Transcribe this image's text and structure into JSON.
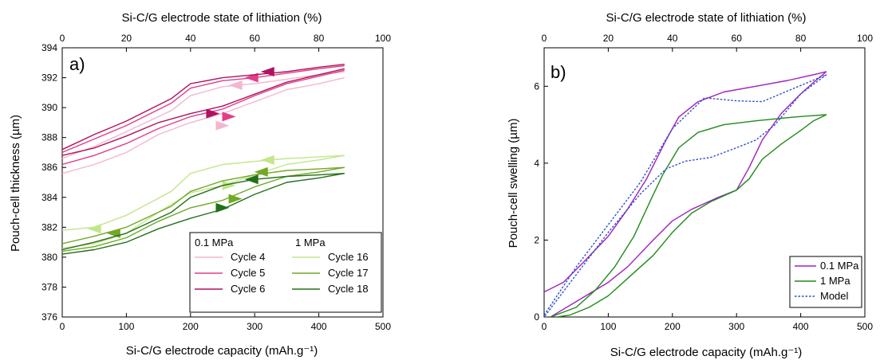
{
  "chart_data": [
    {
      "type": "line",
      "panel_label": "a)",
      "xlabel": "Si-C/G electrode capacity (mAh.g⁻¹)",
      "ylabel": "Pouch-cell thickness (µm)",
      "x2label": "Si-C/G electrode state of lithiation (%)",
      "xlim": [
        0,
        500
      ],
      "ylim": [
        376,
        394
      ],
      "x2lim": [
        0,
        100
      ],
      "xticks": [
        0,
        100,
        200,
        300,
        400,
        500
      ],
      "yticks": [
        376,
        378,
        380,
        382,
        384,
        386,
        388,
        390,
        392,
        394
      ],
      "x2ticks": [
        0,
        20,
        40,
        60,
        80,
        100
      ],
      "grid": false,
      "legend": {
        "placement": "bottom-right",
        "headers": [
          "0.1 MPa",
          "1 MPa"
        ]
      },
      "series": [
        {
          "name": "Cycle 4",
          "color": "#f4b6cf",
          "charge": [
            [
              0,
              385.6
            ],
            [
              50,
              386.2
            ],
            [
              100,
              387.0
            ],
            [
              150,
              388.2
            ],
            [
              200,
              389.0
            ],
            [
              250,
              389.6
            ],
            [
              300,
              390.4
            ],
            [
              350,
              391.2
            ],
            [
              400,
              391.6
            ],
            [
              440,
              392.0
            ]
          ],
          "discharge": [
            [
              440,
              392.4
            ],
            [
              400,
              392.2
            ],
            [
              350,
              391.9
            ],
            [
              300,
              391.6
            ],
            [
              250,
              391.4
            ],
            [
              200,
              390.8
            ],
            [
              170,
              389.8
            ],
            [
              100,
              388.4
            ],
            [
              50,
              387.4
            ],
            [
              0,
              386.6
            ]
          ],
          "arrows": [
            {
              "x": 250,
              "y": 388.8,
              "dir": "right"
            },
            {
              "x": 270,
              "y": 391.5,
              "dir": "left"
            }
          ]
        },
        {
          "name": "Cycle 5",
          "color": "#e33d89",
          "charge": [
            [
              0,
              386.2
            ],
            [
              50,
              386.8
            ],
            [
              100,
              387.6
            ],
            [
              150,
              388.6
            ],
            [
              200,
              389.4
            ],
            [
              250,
              389.9
            ],
            [
              300,
              390.8
            ],
            [
              350,
              391.6
            ],
            [
              400,
              392.1
            ],
            [
              440,
              392.5
            ]
          ],
          "discharge": [
            [
              440,
              392.8
            ],
            [
              400,
              392.6
            ],
            [
              350,
              392.3
            ],
            [
              300,
              392.0
            ],
            [
              250,
              391.8
            ],
            [
              200,
              391.3
            ],
            [
              170,
              390.3
            ],
            [
              100,
              388.8
            ],
            [
              50,
              387.9
            ],
            [
              0,
              387.0
            ]
          ],
          "arrows": [
            {
              "x": 260,
              "y": 389.4,
              "dir": "right"
            },
            {
              "x": 295,
              "y": 392.0,
              "dir": "left"
            }
          ]
        },
        {
          "name": "Cycle 6",
          "color": "#b0125f",
          "charge": [
            [
              0,
              386.8
            ],
            [
              50,
              387.3
            ],
            [
              100,
              388.1
            ],
            [
              150,
              389.0
            ],
            [
              200,
              389.6
            ],
            [
              250,
              390.1
            ],
            [
              300,
              390.9
            ],
            [
              350,
              391.7
            ],
            [
              400,
              392.2
            ],
            [
              440,
              392.6
            ]
          ],
          "discharge": [
            [
              440,
              392.9
            ],
            [
              400,
              392.7
            ],
            [
              350,
              392.4
            ],
            [
              300,
              392.2
            ],
            [
              250,
              392.0
            ],
            [
              200,
              391.6
            ],
            [
              170,
              390.6
            ],
            [
              100,
              389.1
            ],
            [
              50,
              388.2
            ],
            [
              0,
              387.2
            ]
          ],
          "arrows": [
            {
              "x": 235,
              "y": 389.6,
              "dir": "right"
            },
            {
              "x": 320,
              "y": 392.4,
              "dir": "left"
            }
          ]
        },
        {
          "name": "Cycle 16",
          "color": "#c2e68a",
          "charge": [
            [
              0,
              380.6
            ],
            [
              50,
              380.9
            ],
            [
              100,
              381.6
            ],
            [
              150,
              383.0
            ],
            [
              200,
              384.3
            ],
            [
              250,
              384.8
            ],
            [
              300,
              385.5
            ],
            [
              350,
              386.2
            ],
            [
              400,
              386.5
            ],
            [
              440,
              386.8
            ]
          ],
          "discharge": [
            [
              440,
              386.8
            ],
            [
              400,
              386.7
            ],
            [
              350,
              386.6
            ],
            [
              300,
              386.4
            ],
            [
              250,
              386.2
            ],
            [
              200,
              385.6
            ],
            [
              170,
              384.4
            ],
            [
              100,
              382.8
            ],
            [
              50,
              382.0
            ],
            [
              0,
              381.8
            ]
          ],
          "arrows": [
            {
              "x": 50,
              "y": 381.9,
              "dir": "left"
            },
            {
              "x": 260,
              "y": 384.8,
              "dir": "right"
            },
            {
              "x": 320,
              "y": 386.5,
              "dir": "left"
            }
          ]
        },
        {
          "name": "Cycle 17",
          "color": "#72a824",
          "charge": [
            [
              0,
              380.4
            ],
            [
              50,
              380.7
            ],
            [
              100,
              381.3
            ],
            [
              150,
              382.4
            ],
            [
              200,
              383.3
            ],
            [
              250,
              383.8
            ],
            [
              300,
              384.7
            ],
            [
              350,
              385.4
            ],
            [
              400,
              385.7
            ],
            [
              440,
              386.0
            ]
          ],
          "discharge": [
            [
              440,
              386.0
            ],
            [
              400,
              385.9
            ],
            [
              350,
              385.8
            ],
            [
              300,
              385.5
            ],
            [
              250,
              385.1
            ],
            [
              200,
              384.4
            ],
            [
              170,
              383.4
            ],
            [
              100,
              382.0
            ],
            [
              50,
              381.4
            ],
            [
              0,
              380.9
            ]
          ],
          "arrows": [
            {
              "x": 80,
              "y": 381.6,
              "dir": "left"
            },
            {
              "x": 270,
              "y": 383.9,
              "dir": "right"
            },
            {
              "x": 310,
              "y": 385.7,
              "dir": "left"
            }
          ]
        },
        {
          "name": "Cycle 18",
          "color": "#23701a",
          "charge": [
            [
              0,
              380.2
            ],
            [
              50,
              380.5
            ],
            [
              100,
              381.0
            ],
            [
              150,
              381.9
            ],
            [
              200,
              382.6
            ],
            [
              250,
              383.2
            ],
            [
              300,
              384.2
            ],
            [
              350,
              385.0
            ],
            [
              400,
              385.3
            ],
            [
              440,
              385.6
            ]
          ],
          "discharge": [
            [
              440,
              385.6
            ],
            [
              400,
              385.5
            ],
            [
              350,
              385.4
            ],
            [
              300,
              385.2
            ],
            [
              250,
              384.8
            ],
            [
              200,
              384.0
            ],
            [
              170,
              383.0
            ],
            [
              100,
              381.6
            ],
            [
              50,
              381.0
            ],
            [
              0,
              380.5
            ]
          ],
          "arrows": [
            {
              "x": 250,
              "y": 383.3,
              "dir": "right"
            },
            {
              "x": 295,
              "y": 385.2,
              "dir": "left"
            }
          ]
        }
      ]
    },
    {
      "type": "line",
      "panel_label": "b)",
      "xlabel": "Si-C/G electrode capacity (mAh.g⁻¹)",
      "ylabel": "Pouch-cell swelling (µm)",
      "x2label": "Si-C/G electrode state of lithiation (%)",
      "xlim": [
        0,
        500
      ],
      "ylim": [
        0,
        7
      ],
      "x2lim": [
        0,
        100
      ],
      "xticks": [
        0,
        100,
        200,
        300,
        400,
        500
      ],
      "yticks": [
        0,
        2,
        4,
        6
      ],
      "x2ticks": [
        0,
        20,
        40,
        60,
        80,
        100
      ],
      "grid": false,
      "legend": {
        "placement": "bottom-right"
      },
      "series": [
        {
          "name": "0.1 MPa",
          "color": "#a020c0",
          "dash": false,
          "segments": [
            [
              [
                0,
                0.65
              ],
              [
                30,
                0.9
              ],
              [
                60,
                1.4
              ],
              [
                100,
                2.1
              ],
              [
                130,
                2.8
              ],
              [
                160,
                3.6
              ],
              [
                190,
                4.6
              ],
              [
                210,
                5.2
              ],
              [
                240,
                5.6
              ],
              [
                280,
                5.85
              ],
              [
                330,
                6.0
              ],
              [
                380,
                6.15
              ],
              [
                420,
                6.3
              ],
              [
                440,
                6.38
              ]
            ],
            [
              [
                440,
                6.38
              ],
              [
                420,
                6.1
              ],
              [
                400,
                5.8
              ],
              [
                370,
                5.3
              ],
              [
                340,
                4.6
              ],
              [
                320,
                3.9
              ],
              [
                300,
                3.3
              ],
              [
                270,
                3.1
              ],
              [
                230,
                2.8
              ],
              [
                200,
                2.5
              ],
              [
                170,
                2.0
              ],
              [
                130,
                1.3
              ],
              [
                100,
                0.9
              ],
              [
                60,
                0.5
              ],
              [
                30,
                0.2
              ],
              [
                10,
                0.0
              ]
            ]
          ]
        },
        {
          "name": "1 MPa",
          "color": "#1f8a1a",
          "dash": false,
          "segments": [
            [
              [
                10,
                0.0
              ],
              [
                50,
                0.25
              ],
              [
                80,
                0.7
              ],
              [
                110,
                1.3
              ],
              [
                140,
                2.1
              ],
              [
                165,
                3.0
              ],
              [
                185,
                3.7
              ],
              [
                210,
                4.4
              ],
              [
                240,
                4.8
              ],
              [
                280,
                5.0
              ],
              [
                330,
                5.1
              ],
              [
                390,
                5.2
              ],
              [
                440,
                5.26
              ]
            ],
            [
              [
                440,
                5.26
              ],
              [
                420,
                5.1
              ],
              [
                400,
                4.85
              ],
              [
                370,
                4.5
              ],
              [
                340,
                4.1
              ],
              [
                320,
                3.6
              ],
              [
                300,
                3.3
              ],
              [
                260,
                3.0
              ],
              [
                230,
                2.7
              ],
              [
                200,
                2.2
              ],
              [
                170,
                1.6
              ],
              [
                130,
                1.0
              ],
              [
                100,
                0.55
              ],
              [
                70,
                0.25
              ],
              [
                40,
                0.05
              ],
              [
                20,
                0.0
              ]
            ]
          ]
        },
        {
          "name": "Model",
          "color": "#2b50c8",
          "dash": true,
          "segments": [
            [
              [
                0,
                0.05
              ],
              [
                50,
                1.3
              ],
              [
                100,
                2.4
              ],
              [
                150,
                3.5
              ],
              [
                200,
                4.9
              ],
              [
                250,
                5.7
              ],
              [
                300,
                5.62
              ],
              [
                340,
                5.6
              ],
              [
                390,
                5.95
              ],
              [
                440,
                6.3
              ]
            ],
            [
              [
                440,
                6.3
              ],
              [
                400,
                5.8
              ],
              [
                360,
                5.0
              ],
              [
                330,
                4.6
              ],
              [
                300,
                4.4
              ],
              [
                260,
                4.15
              ],
              [
                220,
                4.05
              ],
              [
                190,
                3.85
              ],
              [
                150,
                3.2
              ],
              [
                100,
                2.2
              ],
              [
                50,
                1.1
              ],
              [
                0,
                0.0
              ]
            ]
          ]
        }
      ]
    }
  ]
}
